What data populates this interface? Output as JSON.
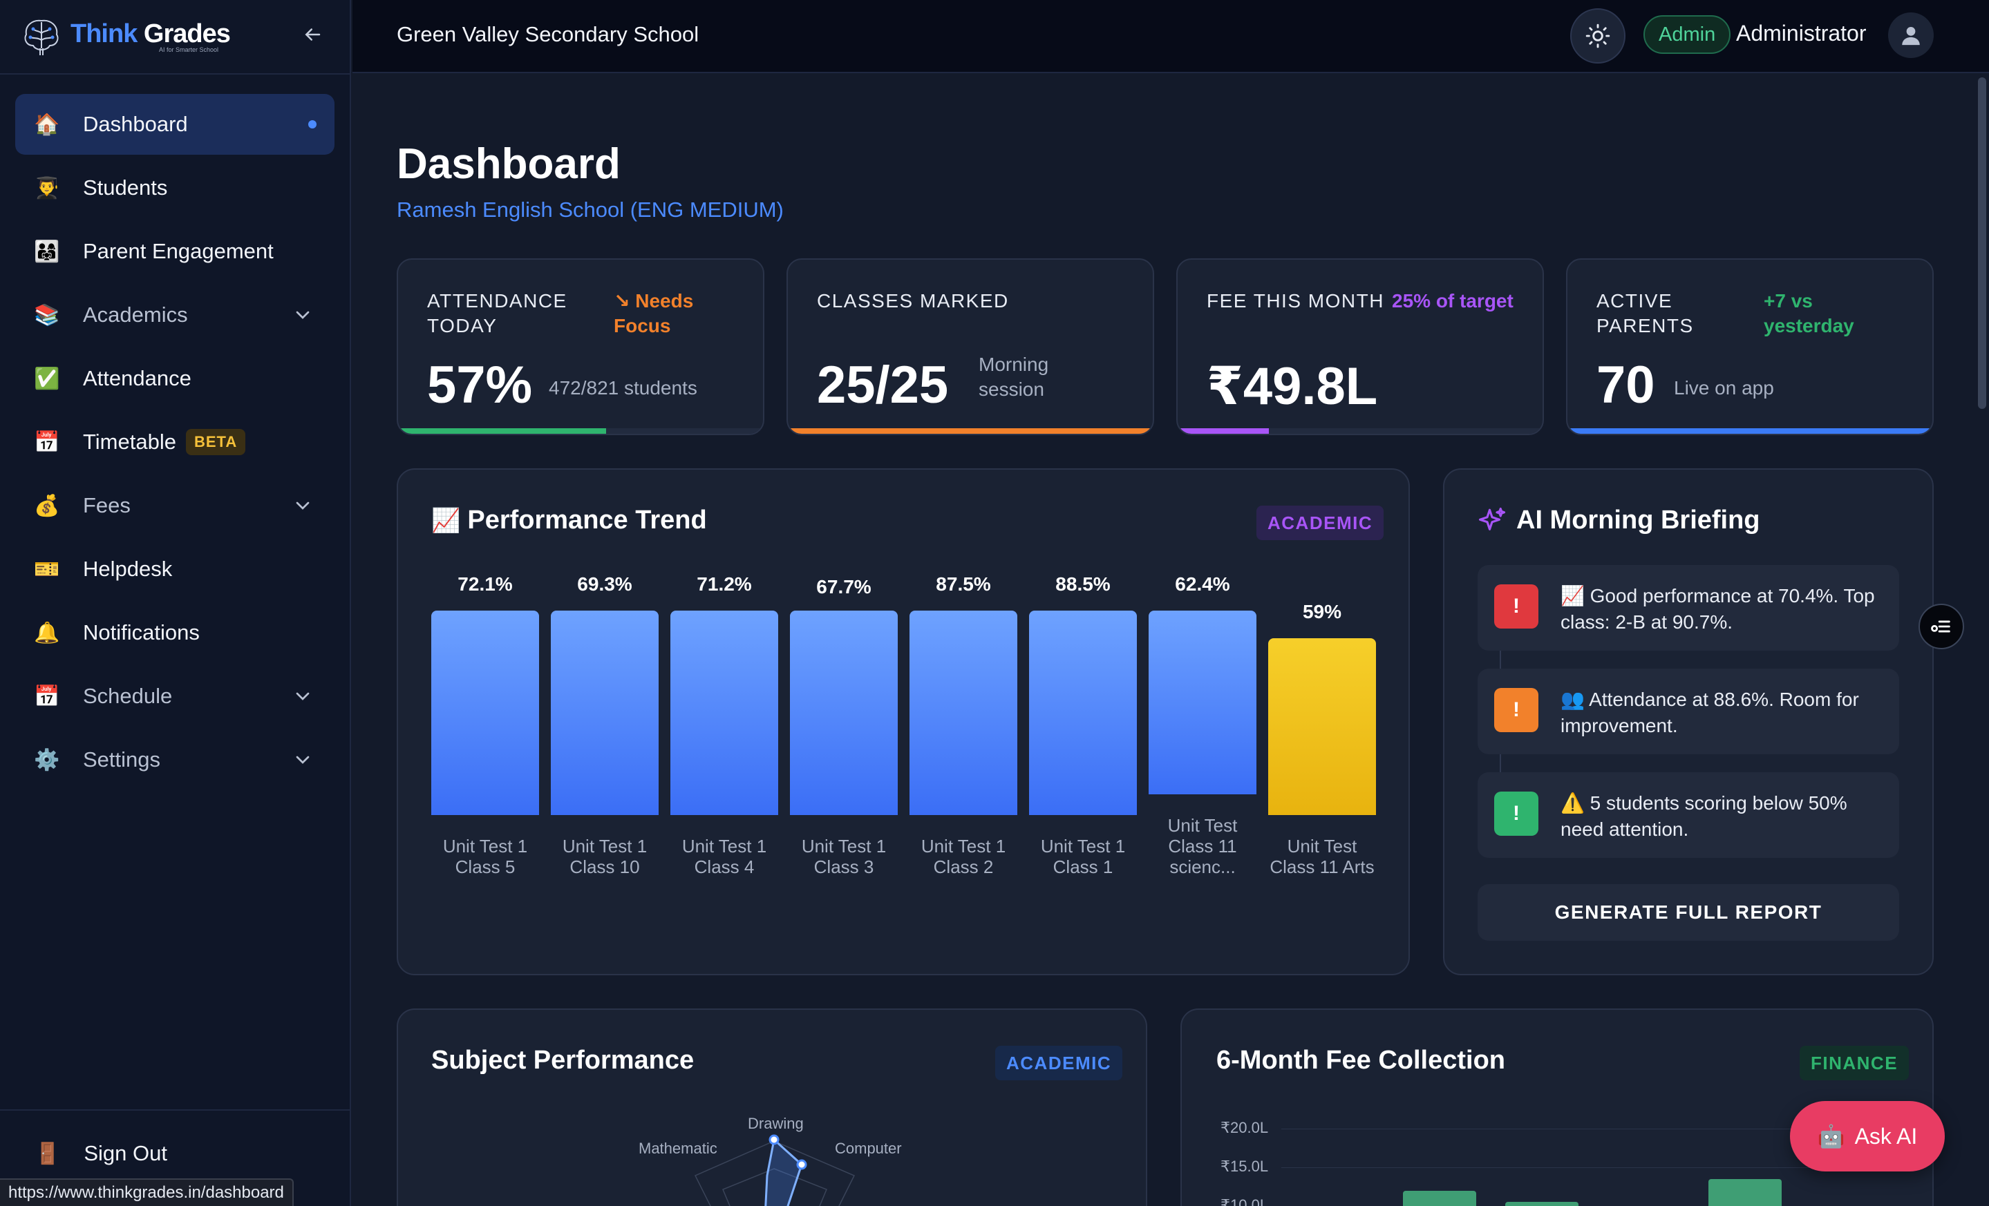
{
  "brand": {
    "name_part1": "Think",
    "name_part2": "Grades",
    "tagline": "AI for Smarter School"
  },
  "sidebar": {
    "items": [
      {
        "label": "Dashboard",
        "icon": "house-icon",
        "glyph": "🏠",
        "active": true
      },
      {
        "label": "Students",
        "icon": "student-icon",
        "glyph": "👨‍🎓"
      },
      {
        "label": "Parent Engagement",
        "icon": "family-icon",
        "glyph": "👨‍👩‍👧"
      },
      {
        "label": "Academics",
        "icon": "books-icon",
        "glyph": "📚",
        "expandable": true
      },
      {
        "label": "Attendance",
        "icon": "check-icon",
        "glyph": "✅"
      },
      {
        "label": "Timetable",
        "icon": "calendar-icon",
        "glyph": "📅",
        "badge": "BETA"
      },
      {
        "label": "Fees",
        "icon": "money-bag-icon",
        "glyph": "💰",
        "expandable": true
      },
      {
        "label": "Helpdesk",
        "icon": "ticket-icon",
        "glyph": "🎫"
      },
      {
        "label": "Notifications",
        "icon": "bell-icon",
        "glyph": "🔔"
      },
      {
        "label": "Schedule",
        "icon": "calendar-icon",
        "glyph": "📅",
        "expandable": true
      },
      {
        "label": "Settings",
        "icon": "gear-icon",
        "glyph": "⚙️",
        "expandable": true
      }
    ],
    "signout_label": "Sign Out",
    "signout_glyph": "🚪"
  },
  "status_url": "https://www.thinkgrades.in/dashboard",
  "topbar": {
    "school_name": "Green Valley Secondary School",
    "role": "Admin",
    "user_name": "Administrator"
  },
  "page": {
    "title": "Dashboard",
    "subtitle": "Ramesh English School (ENG MEDIUM)"
  },
  "stats": [
    {
      "label": "ATTENDANCE TODAY",
      "tag": "↘ Needs Focus",
      "tag_color": "#f2812b",
      "value": "57%",
      "note": "472/821 students",
      "progress": 0.57,
      "bar_color": "#2fb46e"
    },
    {
      "label": "CLASSES MARKED",
      "tag": "",
      "value": "25/25",
      "note": "Morning session",
      "progress": 1.0,
      "bar_color": "#f2812b"
    },
    {
      "label": "FEE THIS MONTH",
      "tag": "25% of target",
      "tag_color": "#a855f7",
      "value": "₹49.8L",
      "note": "",
      "progress": 0.25,
      "bar_color": "#a855f7"
    },
    {
      "label": "ACTIVE PARENTS",
      "tag": "+7 vs yesterday",
      "tag_color": "#2fb46e",
      "value": "70",
      "note": "Live on app",
      "progress": 1.0,
      "bar_color": "#3b7bf6"
    }
  ],
  "performance": {
    "title": "Performance Trend",
    "title_glyph": "📈",
    "badge": "ACADEMIC",
    "chart_data": {
      "type": "bar",
      "categories": [
        "Unit Test 1 Class 5",
        "Unit Test 1 Class 10",
        "Unit Test 1 Class 4",
        "Unit Test 1 Class 3",
        "Unit Test 1 Class 2",
        "Unit Test 1 Class 1",
        "Unit Test Class 11 scienc...",
        "Unit Test Class 11 Arts"
      ],
      "category_lines": [
        [
          "Unit Test 1",
          "Class 5"
        ],
        [
          "Unit Test 1",
          "Class 10"
        ],
        [
          "Unit Test 1",
          "Class 4"
        ],
        [
          "Unit Test 1",
          "Class 3"
        ],
        [
          "Unit Test 1",
          "Class 2"
        ],
        [
          "Unit Test 1",
          "Class 1"
        ],
        [
          "Unit Test",
          "Class 11",
          "scienc..."
        ],
        [
          "Unit Test",
          "Class 11 Arts"
        ]
      ],
      "values": [
        72.1,
        69.3,
        71.2,
        67.7,
        87.5,
        88.5,
        62.4,
        59
      ],
      "value_labels": [
        "72.1%",
        "69.3%",
        "71.2%",
        "67.7%",
        "87.5%",
        "88.5%",
        "62.4%",
        "59%"
      ],
      "highlight_index": 7,
      "colors": {
        "normal": "#3b6ef6",
        "highlight": "#f2c21b"
      }
    }
  },
  "briefing": {
    "title": "AI Morning Briefing",
    "items": [
      {
        "text": "📈 Good performance at 70.4%. Top class: 2-B at 90.7%.",
        "icon_color": "#e0393e",
        "icon_glyph": "!"
      },
      {
        "text": "👥 Attendance at 88.6%. Room for improvement.",
        "icon_color": "#f2812b",
        "icon_glyph": "!"
      },
      {
        "text": "⚠️ 5 students scoring below 50% need attention.",
        "icon_color": "#2fb46e",
        "icon_glyph": "!"
      }
    ],
    "button": "GENERATE FULL REPORT"
  },
  "subject": {
    "title": "Subject Performance",
    "badge": "ACADEMIC",
    "chart_data": {
      "type": "radar",
      "axes_visible": [
        "Drawing",
        "Computer",
        "Mathematic"
      ]
    }
  },
  "fees": {
    "title": "6-Month Fee Collection",
    "badge": "FINANCE",
    "chart_data": {
      "type": "bar",
      "y_ticks": [
        "₹20.0L",
        "₹15.0L",
        "₹10.0L"
      ],
      "values_partial": [
        null,
        12.0,
        10.5,
        null,
        13.5,
        null
      ]
    }
  },
  "ask_ai": {
    "label": "Ask AI",
    "glyph": "🤖"
  }
}
